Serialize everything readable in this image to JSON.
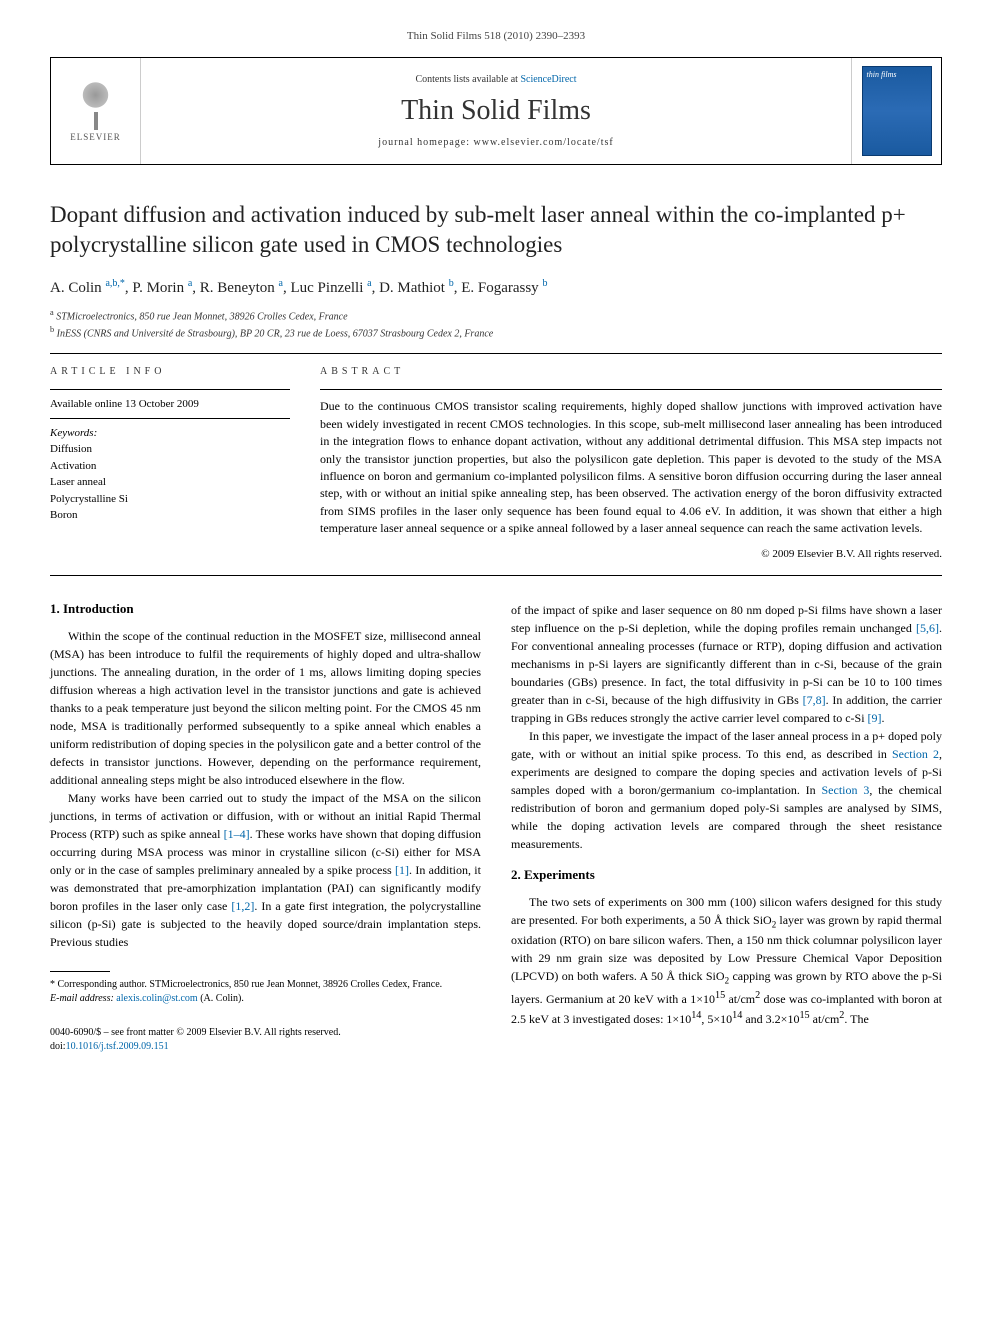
{
  "running_head": "Thin Solid Films 518 (2010) 2390–2393",
  "header": {
    "contents_prefix": "Contents lists available at ",
    "contents_link": "ScienceDirect",
    "journal": "Thin Solid Films",
    "homepage_prefix": "journal homepage: ",
    "homepage_url": "www.elsevier.com/locate/tsf",
    "publisher": "ELSEVIER",
    "cover_title": "thin films"
  },
  "title": "Dopant diffusion and activation induced by sub-melt laser anneal within the co-implanted p+ polycrystalline silicon gate used in CMOS technologies",
  "authors_html": "A. Colin <sup>a,b,*</sup>, P. Morin <sup>a</sup>, R. Beneyton <sup>a</sup>, Luc Pinzelli <sup>a</sup>, D. Mathiot <sup>b</sup>, E. Fogarassy <sup>b</sup>",
  "affiliations": [
    {
      "marker": "a",
      "text": "STMicroelectronics, 850 rue Jean Monnet, 38926 Crolles Cedex, France"
    },
    {
      "marker": "b",
      "text": "InESS (CNRS and Université de Strasbourg), BP 20 CR, 23 rue de Loess, 67037 Strasbourg Cedex 2, France"
    }
  ],
  "article_info": {
    "label": "ARTICLE INFO",
    "history": "Available online 13 October 2009",
    "keywords_label": "Keywords:",
    "keywords": [
      "Diffusion",
      "Activation",
      "Laser anneal",
      "Polycrystalline Si",
      "Boron"
    ]
  },
  "abstract": {
    "label": "ABSTRACT",
    "text": "Due to the continuous CMOS transistor scaling requirements, highly doped shallow junctions with improved activation have been widely investigated in recent CMOS technologies. In this scope, sub-melt millisecond laser annealing has been introduced in the integration flows to enhance dopant activation, without any additional detrimental diffusion. This MSA step impacts not only the transistor junction properties, but also the polysilicon gate depletion. This paper is devoted to the study of the MSA influence on boron and germanium co-implanted polysilicon films. A sensitive boron diffusion occurring during the laser anneal step, with or without an initial spike annealing step, has been observed. The activation energy of the boron diffusivity extracted from SIMS profiles in the laser only sequence has been found equal to 4.06 eV. In addition, it was shown that either a high temperature laser anneal sequence or a spike anneal followed by a laser anneal sequence can reach the same activation levels.",
    "copyright": "© 2009 Elsevier B.V. All rights reserved."
  },
  "sections": {
    "intro": {
      "heading": "1. Introduction",
      "p1": "Within the scope of the continual reduction in the MOSFET size, millisecond anneal (MSA) has been introduce to fulfil the requirements of highly doped and ultra-shallow junctions. The annealing duration, in the order of 1 ms, allows limiting doping species diffusion whereas a high activation level in the transistor junctions and gate is achieved thanks to a peak temperature just beyond the silicon melting point. For the CMOS 45 nm node, MSA is traditionally performed subsequently to a spike anneal which enables a uniform redistribution of doping species in the polysilicon gate and a better control of the defects in transistor junctions. However, depending on the performance requirement, additional annealing steps might be also introduced elsewhere in the flow.",
      "p2_a": "Many works have been carried out to study the impact of the MSA on the silicon junctions, in terms of activation or diffusion, with or without an initial Rapid Thermal Process (RTP) such as spike anneal ",
      "p2_ref1": "[1–4]",
      "p2_b": ". These works have shown that doping diffusion occurring during MSA process was minor in crystalline silicon (c-Si) either for MSA only or in the case of samples preliminary annealed by a spike process ",
      "p2_ref2": "[1]",
      "p2_c": ". In addition, it was demonstrated that pre-amorphization implantation (PAI) can significantly modify boron profiles in the laser only case ",
      "p2_ref3": "[1,2]",
      "p2_d": ". In a gate first integration, the polycrystalline silicon (p-Si) gate is subjected to the heavily doped source/drain implantation steps. Previous studies",
      "p3_a": "of the impact of spike and laser sequence on 80 nm doped p-Si films have shown a laser step influence on the p-Si depletion, while the doping profiles remain unchanged ",
      "p3_ref1": "[5,6]",
      "p3_b": ". For conventional annealing processes (furnace or RTP), doping diffusion and activation mechanisms in p-Si layers are significantly different than in c-Si, because of the grain boundaries (GBs) presence. In fact, the total diffusivity in p-Si can be 10 to 100 times greater than in c-Si, because of the high diffusivity in GBs ",
      "p3_ref2": "[7,8]",
      "p3_c": ". In addition, the carrier trapping in GBs reduces strongly the active carrier level compared to c-Si ",
      "p3_ref3": "[9]",
      "p3_d": ".",
      "p4_a": "In this paper, we investigate the impact of the laser anneal process in a p+ doped poly gate, with or without an initial spike process. To this end, as described in ",
      "p4_ref1": "Section 2",
      "p4_b": ", experiments are designed to compare the doping species and activation levels of p-Si samples doped with a boron/germanium co-implantation. In ",
      "p4_ref2": "Section 3",
      "p4_c": ", the chemical redistribution of boron and germanium doped poly-Si samples are analysed by SIMS, while the doping activation levels are compared through the sheet resistance measurements."
    },
    "exp": {
      "heading": "2. Experiments",
      "p1_a": "The two sets of experiments on 300 mm (100) silicon wafers designed for this study are presented. For both experiments, a 50 Å thick SiO",
      "p1_b": " layer was grown by rapid thermal oxidation (RTO) on bare silicon wafers. Then, a 150 nm thick columnar polysilicon layer with 29 nm grain size was deposited by Low Pressure Chemical Vapor Deposition (LPCVD) on both wafers. A 50 Å thick SiO",
      "p1_c": " capping was grown by RTO above the p-Si layers. Germanium at 20 keV with a 1×10",
      "p1_d": " at/cm",
      "p1_e": " dose was co-implanted with boron at 2.5 keV at 3 investigated doses: 1×10",
      "p1_f": ", 5×10",
      "p1_g": " and 3.2×10",
      "p1_h": " at/cm",
      "p1_i": ". The"
    }
  },
  "footnote": {
    "corr": "* Corresponding author. STMicroelectronics, 850 rue Jean Monnet, 38926 Crolles Cedex, France.",
    "email_label": "E-mail address: ",
    "email": "alexis.colin@st.com",
    "email_suffix": " (A. Colin)."
  },
  "footer": {
    "left": "0040-6090/$ – see front matter © 2009 Elsevier B.V. All rights reserved.",
    "doi_label": "doi:",
    "doi": "10.1016/j.tsf.2009.09.151"
  }
}
